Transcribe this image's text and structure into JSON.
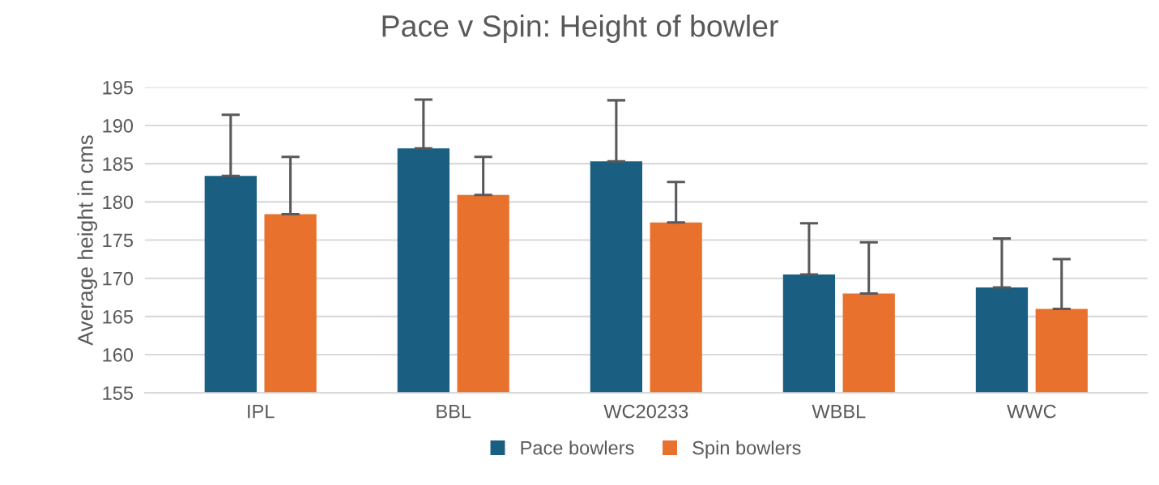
{
  "chart_data": {
    "type": "bar",
    "title": "Pace v Spin: Height of bowler",
    "ylabel": "Average height in cms",
    "categories": [
      "IPL",
      "BBL",
      "WC20233",
      "WBBL",
      "WWC"
    ],
    "series": [
      {
        "name": "Pace bowlers",
        "color": "#1a5e82",
        "values": [
          183.4,
          187.0,
          185.3,
          170.5,
          168.8
        ],
        "errors": [
          [
            183.4,
            191.4
          ],
          [
            187.0,
            193.4
          ],
          [
            185.3,
            193.3
          ],
          [
            170.5,
            177.2
          ],
          [
            168.8,
            175.2
          ]
        ]
      },
      {
        "name": "Spin bowlers",
        "color": "#e8712e",
        "values": [
          178.4,
          180.9,
          177.3,
          168.0,
          166.0
        ],
        "errors": [
          [
            178.4,
            185.9
          ],
          [
            180.9,
            185.9
          ],
          [
            177.3,
            182.6
          ],
          [
            168.0,
            174.7
          ],
          [
            166.0,
            172.5
          ]
        ]
      }
    ],
    "ylim": [
      155,
      195
    ],
    "yticks": [
      155,
      160,
      165,
      170,
      175,
      180,
      185,
      190,
      195
    ],
    "grid": "y",
    "legend": "bottom"
  }
}
